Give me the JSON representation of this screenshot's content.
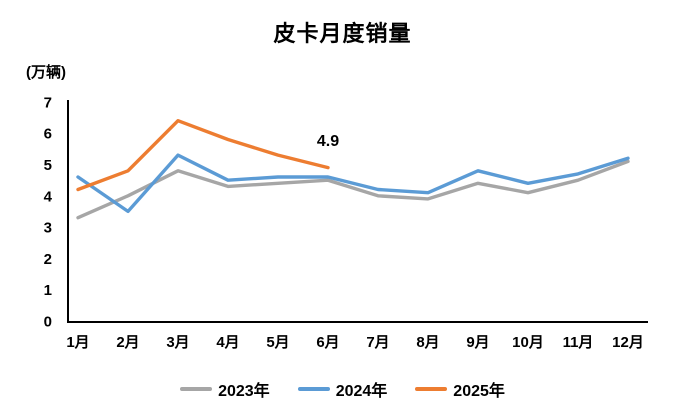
{
  "title": "皮卡月度销量",
  "unit_label": "(万辆)",
  "annotation": {
    "text": "4.9",
    "series": "2025年",
    "category": "6月"
  },
  "chart_data": {
    "type": "line",
    "title": "皮卡月度销量",
    "ylabel": "(万辆)",
    "categories": [
      "1月",
      "2月",
      "3月",
      "4月",
      "5月",
      "6月",
      "7月",
      "8月",
      "9月",
      "10月",
      "11月",
      "12月"
    ],
    "series": [
      {
        "name": "2023年",
        "color": "#A6A6A6",
        "values": [
          3.3,
          4.0,
          4.8,
          4.3,
          4.4,
          4.5,
          4.0,
          3.9,
          4.4,
          4.1,
          4.5,
          5.1
        ]
      },
      {
        "name": "2024年",
        "color": "#5B9BD5",
        "values": [
          4.6,
          3.5,
          5.3,
          4.5,
          4.6,
          4.6,
          4.2,
          4.1,
          4.8,
          4.4,
          4.7,
          5.2
        ]
      },
      {
        "name": "2025年",
        "color": "#ED7D31",
        "values": [
          4.2,
          4.8,
          6.4,
          5.8,
          5.3,
          4.9
        ]
      }
    ],
    "ylim": [
      0,
      7
    ],
    "y_ticks": [
      0,
      1,
      2,
      3,
      4,
      5,
      6,
      7
    ],
    "grid": false,
    "legend_position": "bottom",
    "axis_color": "#000000"
  }
}
